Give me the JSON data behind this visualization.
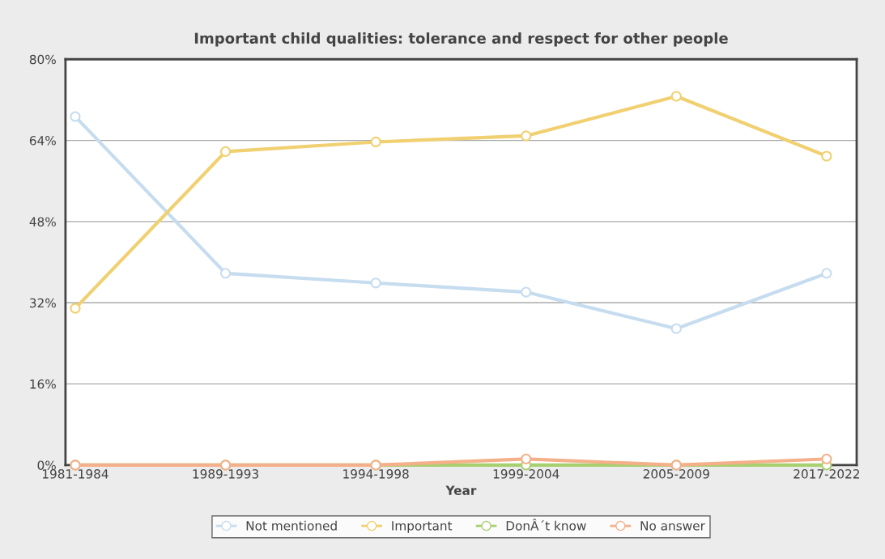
{
  "chart_data": {
    "type": "line",
    "title": "Important child qualities: tolerance and respect for other people",
    "xlabel": "Year",
    "categories": [
      "1981-1984",
      "1989-1993",
      "1994-1998",
      "1999-2004",
      "2005-2009",
      "2017-2022"
    ],
    "series": [
      {
        "name": "Not mentioned",
        "color": "#c6dcef",
        "values": [
          68.7,
          37.8,
          35.9,
          34.1,
          26.9,
          37.8
        ]
      },
      {
        "name": "Important",
        "color": "#f0d070",
        "values": [
          30.9,
          61.8,
          63.7,
          64.9,
          72.7,
          60.9
        ]
      },
      {
        "name": "DonÂ´t know",
        "color": "#a8d070",
        "values": [
          0,
          0,
          0,
          0,
          0,
          0
        ]
      },
      {
        "name": "No answer",
        "color": "#f4b08a",
        "values": [
          0,
          0,
          0,
          1.2,
          0,
          1.2
        ]
      }
    ],
    "ylim": [
      0,
      80
    ],
    "yticks": [
      {
        "value": 0,
        "label": "0%"
      },
      {
        "value": 16,
        "label": "16%"
      },
      {
        "value": 32,
        "label": "32%"
      },
      {
        "value": 48,
        "label": "48%"
      },
      {
        "value": 64,
        "label": "64%"
      },
      {
        "value": 80,
        "label": "80%"
      }
    ],
    "grid": "y",
    "legend": "bottom",
    "marker": "circle",
    "line_style": "solid"
  }
}
